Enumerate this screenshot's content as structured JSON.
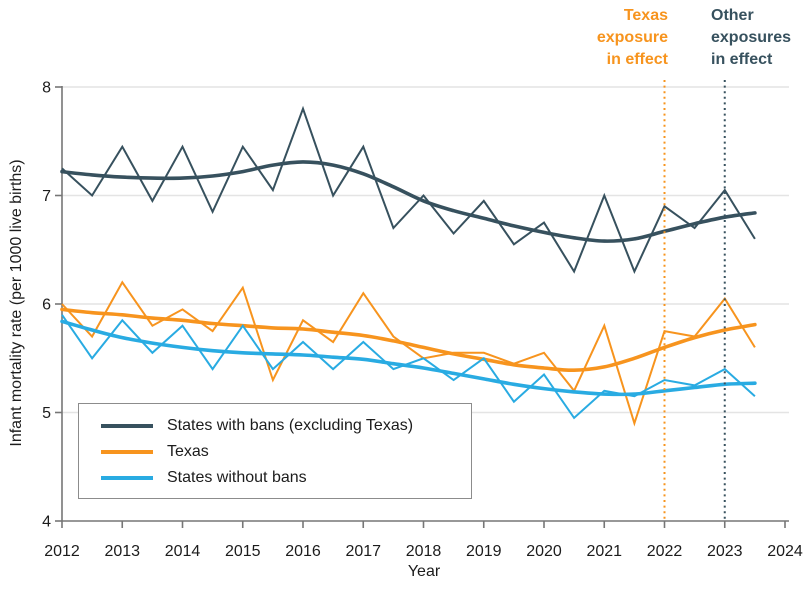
{
  "colors": {
    "ban_states": "#37515E",
    "texas": "#F7941E",
    "no_ban_states": "#29ABE2",
    "grid": "#E4E4E4",
    "axis": "#767676",
    "text": "#1C1C1C"
  },
  "legend": {
    "items": [
      {
        "label": "States with bans (excluding Texas)",
        "color": "#37515E"
      },
      {
        "label": "Texas",
        "color": "#F7941E"
      },
      {
        "label": "States without bans",
        "color": "#29ABE2"
      }
    ]
  },
  "chart_data": {
    "type": "line",
    "xlabel": "Year",
    "ylabel": "Infant mortality rate (per 1000 live births)",
    "xlim": [
      2012,
      2024
    ],
    "ylim": [
      4,
      8
    ],
    "grid": "horizontal",
    "legend_position": "lower-left-box",
    "x_ticks": [
      2012,
      2013,
      2014,
      2015,
      2016,
      2017,
      2018,
      2019,
      2020,
      2021,
      2022,
      2023,
      2024
    ],
    "y_ticks": [
      4,
      5,
      6,
      7,
      8
    ],
    "x": [
      2012,
      2012.5,
      2013,
      2013.5,
      2014,
      2014.5,
      2015,
      2015.5,
      2016,
      2016.5,
      2017,
      2017.5,
      2018,
      2018.5,
      2019,
      2019.5,
      2020,
      2020.5,
      2021,
      2021.5,
      2022,
      2022.5,
      2023,
      2023.5
    ],
    "series": [
      {
        "name": "States with bans (excluding Texas)",
        "role": "observed",
        "color": "#37515E",
        "values": [
          7.25,
          7.0,
          7.45,
          6.95,
          7.45,
          6.85,
          7.45,
          7.05,
          7.8,
          7.0,
          7.45,
          6.7,
          7.0,
          6.65,
          6.95,
          6.55,
          6.75,
          6.3,
          7.0,
          6.3,
          6.9,
          6.7,
          7.05,
          6.6
        ]
      },
      {
        "name": "States with bans (excluding Texas) trend",
        "role": "trend",
        "color": "#37515E",
        "values": [
          7.22,
          7.19,
          7.17,
          7.16,
          7.16,
          7.18,
          7.22,
          7.28,
          7.31,
          7.28,
          7.2,
          7.08,
          6.95,
          6.86,
          6.79,
          6.72,
          6.66,
          6.61,
          6.58,
          6.6,
          6.67,
          6.74,
          6.8,
          6.84
        ]
      },
      {
        "name": "Texas",
        "role": "observed",
        "color": "#F7941E",
        "values": [
          6.0,
          5.7,
          6.2,
          5.8,
          5.95,
          5.75,
          6.15,
          5.3,
          5.85,
          5.65,
          6.1,
          5.7,
          5.5,
          5.55,
          5.55,
          5.45,
          5.55,
          5.2,
          5.8,
          4.9,
          5.75,
          5.7,
          6.05,
          5.6
        ]
      },
      {
        "name": "Texas trend",
        "role": "trend",
        "color": "#F7941E",
        "values": [
          5.95,
          5.92,
          5.9,
          5.87,
          5.85,
          5.82,
          5.8,
          5.78,
          5.77,
          5.74,
          5.71,
          5.66,
          5.6,
          5.54,
          5.49,
          5.44,
          5.41,
          5.39,
          5.42,
          5.5,
          5.6,
          5.69,
          5.76,
          5.81
        ]
      },
      {
        "name": "States without bans",
        "role": "observed",
        "color": "#29ABE2",
        "values": [
          5.9,
          5.5,
          5.85,
          5.55,
          5.8,
          5.4,
          5.8,
          5.4,
          5.65,
          5.4,
          5.65,
          5.4,
          5.5,
          5.3,
          5.5,
          5.1,
          5.35,
          4.95,
          5.2,
          5.15,
          5.3,
          5.25,
          5.4,
          5.15
        ]
      },
      {
        "name": "States without bans trend",
        "role": "trend",
        "color": "#29ABE2",
        "values": [
          5.84,
          5.76,
          5.69,
          5.64,
          5.6,
          5.57,
          5.55,
          5.54,
          5.53,
          5.51,
          5.49,
          5.45,
          5.41,
          5.36,
          5.31,
          5.26,
          5.22,
          5.19,
          5.17,
          5.17,
          5.2,
          5.23,
          5.26,
          5.27
        ]
      }
    ],
    "vlines": [
      {
        "x": 2022,
        "color": "#F7941E",
        "style": "dotted",
        "label_lines": [
          "Texas",
          "exposure",
          "in effect"
        ]
      },
      {
        "x": 2023,
        "color": "#37515E",
        "style": "dotted",
        "label_lines": [
          "Other",
          "exposures",
          "in effect"
        ]
      }
    ]
  }
}
